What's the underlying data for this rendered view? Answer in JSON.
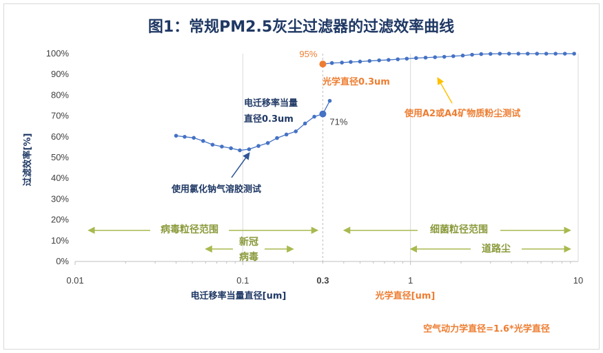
{
  "chart_data": {
    "type": "scatter",
    "title": "图1：常规PM2.5灰尘过滤器的过滤效率曲线",
    "xlabel": "电迁移率当量直径[um]",
    "xlabel_secondary": "光学直径[um]",
    "ylabel": "过滤效率[%]",
    "xscale": "log",
    "xlim": [
      0.01,
      10
    ],
    "ylim": [
      0,
      100
    ],
    "xticks": [
      0.01,
      0.1,
      1,
      10
    ],
    "xtick_labels": [
      "0.01",
      "0.1",
      "1",
      "10"
    ],
    "extra_xtick_label": "0.3",
    "yticks": [
      0,
      10,
      20,
      30,
      40,
      50,
      60,
      70,
      80,
      90,
      100
    ],
    "ytick_labels": [
      "0%",
      "10%",
      "20%",
      "30%",
      "40%",
      "50%",
      "60%",
      "70%",
      "80%",
      "90%",
      "100%"
    ],
    "grid": "vertical-major",
    "series": [
      {
        "name": "使用氯化钠气溶胶测试",
        "color": "#4472c4",
        "x": [
          0.04,
          0.045,
          0.051,
          0.058,
          0.066,
          0.075,
          0.085,
          0.096,
          0.109,
          0.124,
          0.141,
          0.16,
          0.182,
          0.207,
          0.235,
          0.267,
          0.3,
          0.33
        ],
        "y": [
          60.5,
          60.0,
          59.5,
          58.0,
          56.2,
          55.3,
          54.5,
          53.5,
          54.0,
          55.6,
          57.0,
          59.4,
          61.1,
          62.6,
          66.4,
          69.7,
          71.0,
          77.3
        ]
      },
      {
        "name": "使用A2或A4矿物质粉尘测试",
        "color": "#4472c4",
        "x": [
          0.3,
          0.34,
          0.39,
          0.44,
          0.5,
          0.57,
          0.65,
          0.74,
          0.84,
          0.95,
          1.08,
          1.23,
          1.4,
          1.59,
          1.8,
          2.05,
          2.33,
          2.64,
          3.0,
          3.41,
          3.87,
          4.4,
          5.0,
          5.68,
          6.45,
          7.33,
          8.33,
          9.46
        ],
        "y": [
          95.0,
          95.5,
          95.7,
          96.0,
          96.2,
          96.5,
          96.8,
          97.0,
          97.3,
          97.6,
          97.9,
          98.1,
          98.3,
          98.5,
          98.8,
          99.1,
          99.5,
          99.8,
          99.9,
          100,
          100,
          100,
          100,
          100,
          100,
          100,
          100,
          100
        ]
      }
    ],
    "highlight_points": [
      {
        "x": 0.3,
        "y": 71,
        "label": "71%",
        "color": "#4472c4"
      },
      {
        "x": 0.3,
        "y": 95,
        "label": "95%",
        "color": "#ed7d31"
      }
    ],
    "annotations": {
      "emd_line1": "电迁移率当量",
      "emd_line2": "直径0.3um",
      "optical": "光学直径0.3um",
      "dust_test": "使用A2或A4矿物质粉尘测试",
      "nacl_test": "使用氯化钠气溶胶测试",
      "virus_range": "病毒粒径范围",
      "covid_line1": "新冠",
      "covid_line2": "病毒",
      "bacteria_range": "细菌粒径范围",
      "road_dust": "道路尘",
      "footer": "空气动力学直径=1.6*光学直径"
    },
    "ranges": [
      {
        "name": "virus",
        "x": [
          0.012,
          0.28
        ],
        "y": 15
      },
      {
        "name": "covid",
        "x": [
          0.06,
          0.2
        ],
        "y": 6
      },
      {
        "name": "bacteria",
        "x": [
          0.4,
          9
        ],
        "y": 15
      },
      {
        "name": "road_dust",
        "x": [
          1.0,
          9
        ],
        "y": 6
      }
    ]
  }
}
